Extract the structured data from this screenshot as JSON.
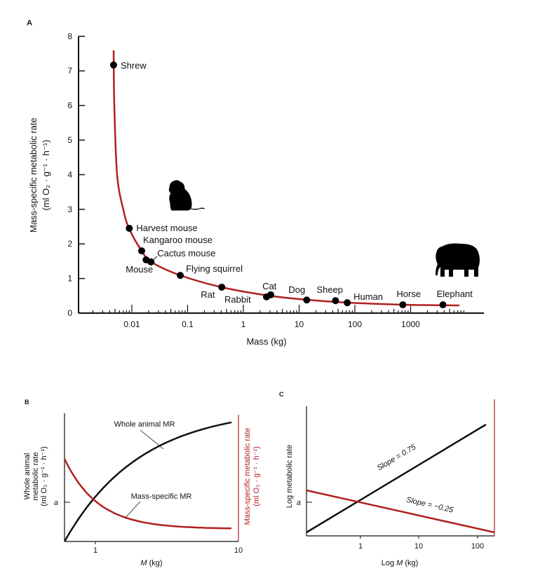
{
  "colors": {
    "curve": "#b0201f",
    "axis": "#111111",
    "point": "#000000"
  },
  "chart_data": [
    {
      "panel": "A",
      "type": "scatter",
      "x_scale": "log",
      "xlabel": "Mass (kg)",
      "ylabel": "Mass-specific metabolic rate",
      "ylabel_unit": "(ml O₂ · g⁻¹ · h⁻¹)",
      "ylim": [
        0,
        8
      ],
      "yticks": [
        "0",
        "1",
        "2",
        "3",
        "4",
        "5",
        "6",
        "7",
        "8"
      ],
      "xticks": [
        {
          "v": 0.01,
          "label": "0.01"
        },
        {
          "v": 0.1,
          "label": "0.1"
        },
        {
          "v": 1,
          "label": "1"
        },
        {
          "v": 10,
          "label": "10"
        },
        {
          "v": 100,
          "label": "100"
        },
        {
          "v": 1000,
          "label": "1000"
        }
      ],
      "points": [
        {
          "name": "Shrew",
          "x": 0.0047,
          "y": 7.17
        },
        {
          "name": "Harvest mouse",
          "x": 0.009,
          "y": 2.45
        },
        {
          "name": "Kangaroo mouse",
          "x": 0.015,
          "y": 1.8
        },
        {
          "name": "Mouse",
          "x": 0.018,
          "y": 1.54
        },
        {
          "name": "Cactus mouse",
          "x": 0.022,
          "y": 1.48
        },
        {
          "name": "Flying squirrel",
          "x": 0.074,
          "y": 1.09
        },
        {
          "name": "Rat",
          "x": 0.41,
          "y": 0.75
        },
        {
          "name": "Rabbit",
          "x": 2.6,
          "y": 0.47
        },
        {
          "name": "Cat",
          "x": 3.1,
          "y": 0.53
        },
        {
          "name": "Dog",
          "x": 13.7,
          "y": 0.38
        },
        {
          "name": "Sheep",
          "x": 45,
          "y": 0.36
        },
        {
          "name": "Human",
          "x": 73,
          "y": 0.3
        },
        {
          "name": "Horse",
          "x": 725,
          "y": 0.24
        },
        {
          "name": "Elephant",
          "x": 3800,
          "y": 0.24
        }
      ],
      "fit_curve": true,
      "icons": [
        "mouse-silhouette",
        "elephant-silhouette"
      ]
    },
    {
      "panel": "B",
      "type": "line",
      "xlabel": "M (kg)",
      "xticks": [
        "1",
        "10"
      ],
      "ylabel_left": [
        "Whole animal",
        "metabolic rate",
        "(ml O₂ · g⁻¹ · h⁻¹)"
      ],
      "ylabel_right": [
        "Mass-specific metabolic rate",
        "(ml O₂ · g⁻¹ · h⁻¹)"
      ],
      "ytick": "a",
      "series": [
        {
          "name": "Whole animal MR",
          "color": "#111111",
          "trend": "increasing, concave"
        },
        {
          "name": "Mass-specific MR",
          "color": "#b0201f",
          "trend": "decreasing"
        }
      ]
    },
    {
      "panel": "C",
      "type": "line",
      "x_scale": "log",
      "xlabel": "Log M (kg)",
      "ylabel": "Log metabolic rate",
      "xticks": [
        "1",
        "10",
        "100"
      ],
      "ytick": "a",
      "series": [
        {
          "name": "Slope = 0.75",
          "slope": 0.75,
          "color": "#111111"
        },
        {
          "name": "Slope = −0.25",
          "slope": -0.25,
          "color": "#b0201f"
        }
      ]
    }
  ]
}
